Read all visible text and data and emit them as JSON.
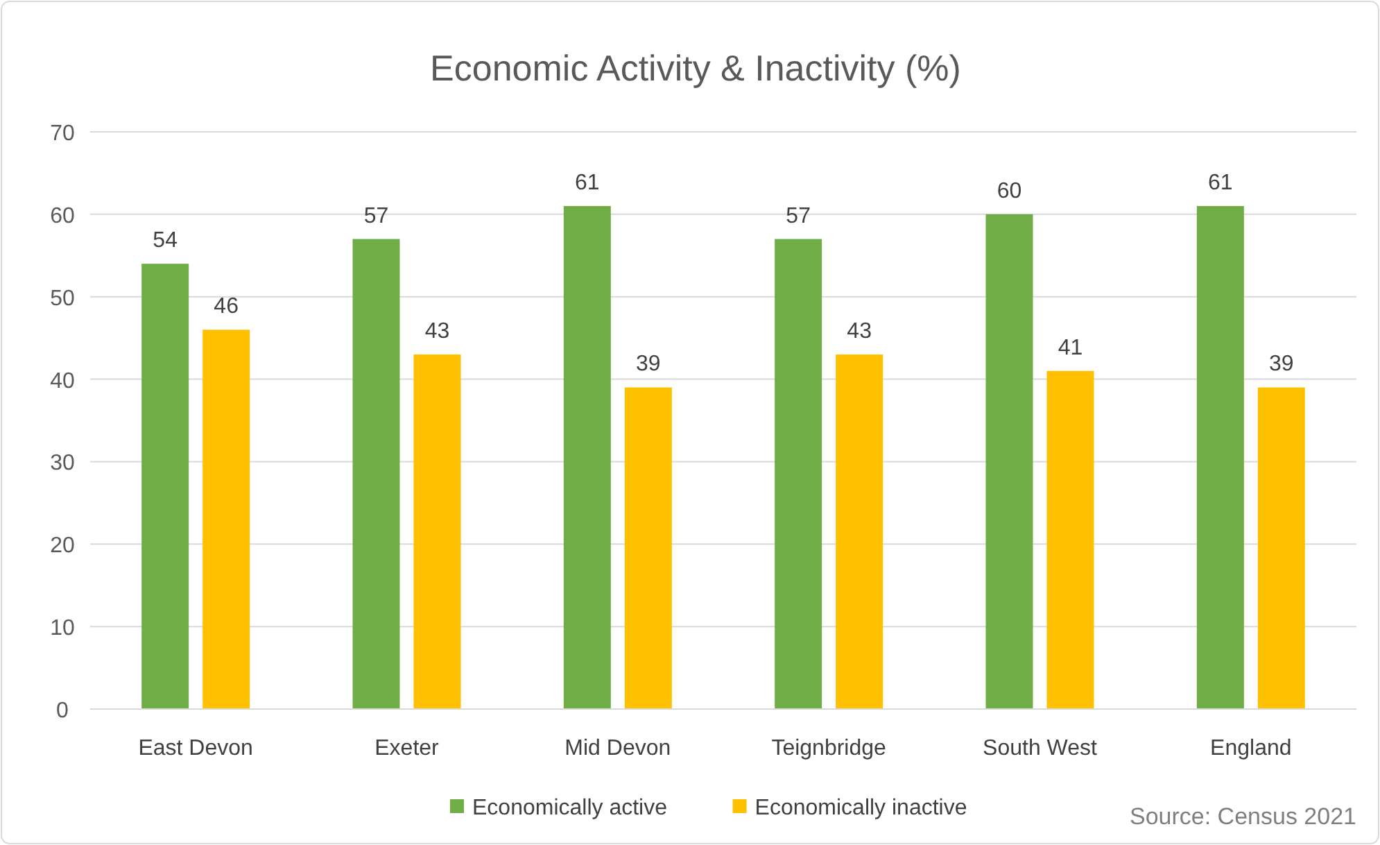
{
  "chart_data": {
    "type": "bar",
    "title": "Economic Activity & Inactivity (%)",
    "categories": [
      "East Devon",
      "Exeter",
      "Mid Devon",
      "Teignbridge",
      "South West",
      "England"
    ],
    "series": [
      {
        "name": "Economically active",
        "color": "#70ad47",
        "values": [
          54,
          57,
          61,
          57,
          60,
          61
        ]
      },
      {
        "name": "Economically inactive",
        "color": "#ffc000",
        "values": [
          46,
          43,
          39,
          43,
          41,
          39
        ]
      }
    ],
    "ylim": [
      0,
      70
    ],
    "yticks": [
      0,
      10,
      20,
      30,
      40,
      50,
      60,
      70
    ],
    "grid": "y",
    "legend": "bottom",
    "data_labels": true,
    "annotations": [
      "Source: Census 2021"
    ]
  }
}
